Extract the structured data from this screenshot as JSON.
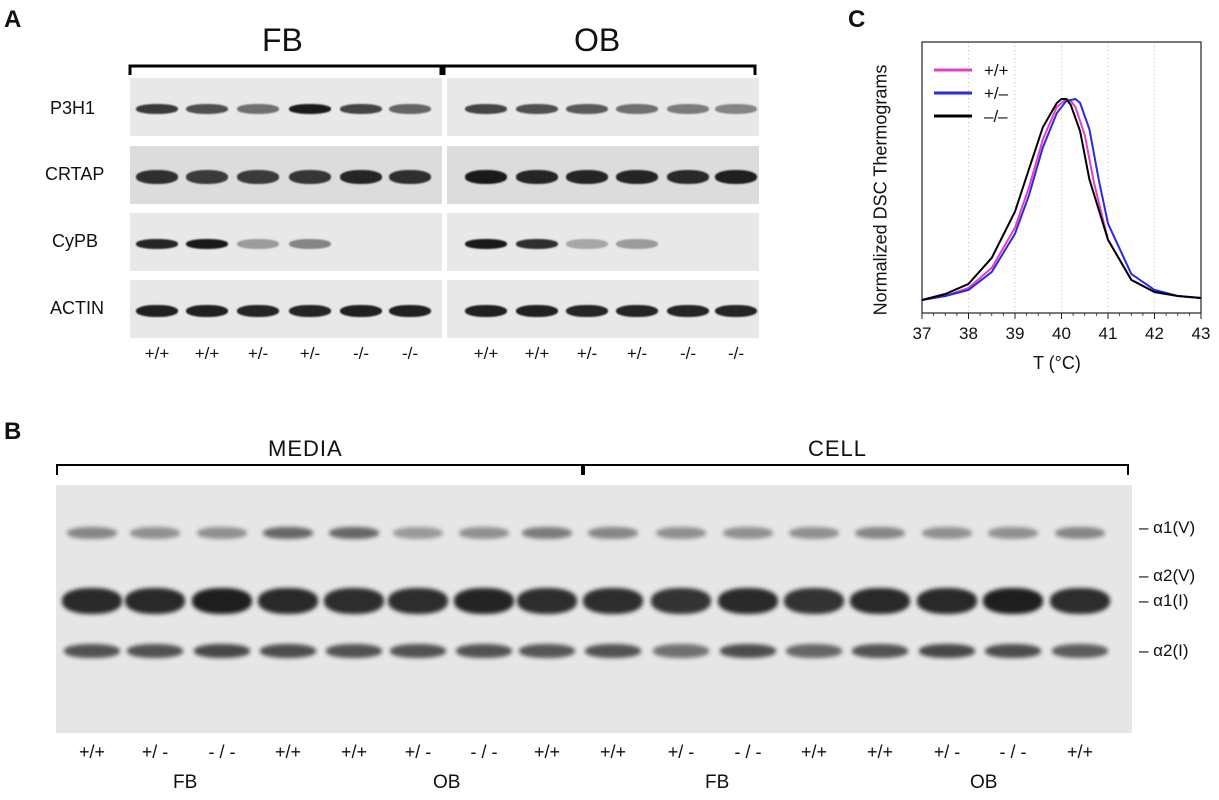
{
  "panel_a": {
    "letter": "A",
    "groups": [
      "FB",
      "OB"
    ],
    "rows": [
      "P3H1",
      "CRTAP",
      "CyPB",
      "ACTIN"
    ],
    "lanes": [
      "+/+",
      "+/+",
      "+/-",
      "+/-",
      "-/-",
      "-/-"
    ],
    "band_intensity": {
      "P3H1": {
        "FB": [
          0.8,
          0.7,
          0.55,
          0.95,
          0.75,
          0.6
        ],
        "OB": [
          0.75,
          0.7,
          0.65,
          0.55,
          0.5,
          0.45
        ]
      },
      "CRTAP": {
        "FB": [
          0.85,
          0.8,
          0.8,
          0.82,
          0.9,
          0.85
        ],
        "OB": [
          0.95,
          0.9,
          0.9,
          0.9,
          0.88,
          0.92
        ]
      },
      "CyPB": {
        "FB": [
          0.9,
          0.95,
          0.35,
          0.45,
          0.0,
          0.0
        ],
        "OB": [
          0.95,
          0.85,
          0.3,
          0.35,
          0.0,
          0.0
        ]
      },
      "ACTIN": {
        "FB": [
          0.92,
          0.92,
          0.9,
          0.9,
          0.92,
          0.92
        ],
        "OB": [
          0.92,
          0.92,
          0.9,
          0.9,
          0.9,
          0.9
        ]
      }
    }
  },
  "panel_b": {
    "letter": "B",
    "sections": [
      "MEDIA",
      "CELL"
    ],
    "lanes": [
      "+/+",
      "+/ -",
      "- / -",
      "+/+",
      "+/+",
      "+/ -",
      "- / -",
      "+/+",
      "+/+",
      "+/ -",
      "- / -",
      "+/+",
      "+/+",
      "+/ -",
      "- / -",
      "+/+"
    ],
    "groups": [
      "FB",
      "OB",
      "FB",
      "OB"
    ],
    "band_labels": [
      "– α1(V)",
      "– α2(V)",
      "– α1(I)",
      "– α2(I)"
    ]
  },
  "panel_c": {
    "letter": "C",
    "chart_data": {
      "type": "line",
      "title": "",
      "xlabel": "T  (°C)",
      "ylabel": "Normalized DSC Thermograms",
      "xlim": [
        37,
        43
      ],
      "ylim": [
        0,
        1
      ],
      "x_ticks": [
        "37",
        "38",
        "39",
        "40",
        "41",
        "42",
        "43"
      ],
      "grid": "vertical dotted",
      "legend_position": "top-left",
      "series": [
        {
          "name": "+/+",
          "color": "#e040c8",
          "x": [
            37,
            37.5,
            38,
            38.5,
            39,
            39.3,
            39.6,
            39.9,
            40.1,
            40.2,
            40.3,
            40.5,
            40.7,
            41,
            41.5,
            42,
            42.5,
            43
          ],
          "y": [
            0.0,
            0.02,
            0.06,
            0.16,
            0.36,
            0.56,
            0.8,
            0.96,
            1.0,
            0.99,
            0.96,
            0.82,
            0.58,
            0.3,
            0.1,
            0.04,
            0.02,
            0.01
          ]
        },
        {
          "name": "+/–",
          "color": "#2a2ae0",
          "x": [
            37,
            37.5,
            38,
            38.5,
            39,
            39.3,
            39.6,
            39.9,
            40.1,
            40.3,
            40.4,
            40.6,
            40.8,
            41,
            41.5,
            42,
            42.5,
            43
          ],
          "y": [
            0.0,
            0.02,
            0.05,
            0.14,
            0.33,
            0.52,
            0.76,
            0.93,
            0.99,
            1.0,
            0.98,
            0.85,
            0.6,
            0.38,
            0.13,
            0.05,
            0.02,
            0.01
          ]
        },
        {
          "name": "–/–",
          "color": "#000000",
          "x": [
            37,
            37.5,
            38,
            38.5,
            39,
            39.3,
            39.6,
            39.9,
            40.0,
            40.1,
            40.2,
            40.4,
            40.6,
            41,
            41.5,
            42,
            42.5,
            43
          ],
          "y": [
            0.0,
            0.03,
            0.08,
            0.21,
            0.44,
            0.65,
            0.86,
            0.98,
            1.0,
            1.0,
            0.97,
            0.84,
            0.6,
            0.3,
            0.1,
            0.04,
            0.02,
            0.01
          ]
        }
      ]
    }
  }
}
